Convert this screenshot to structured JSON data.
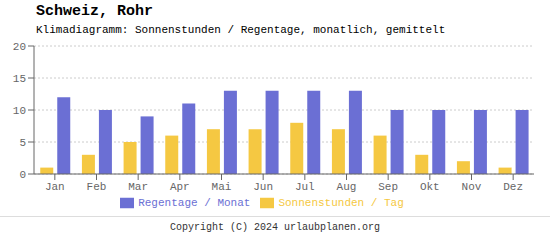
{
  "chart_data": {
    "type": "bar",
    "title": "Schweiz, Rohr",
    "subtitle": "Klimadiagramm: Sonnenstunden / Regentage, monatlich, gemittelt",
    "categories": [
      "Jan",
      "Feb",
      "Mar",
      "Apr",
      "Mai",
      "Jun",
      "Jul",
      "Aug",
      "Sep",
      "Okt",
      "Nov",
      "Dez"
    ],
    "series": [
      {
        "name": "Sonnenstunden / Tag",
        "color": "#F5C842",
        "values": [
          1,
          3,
          5,
          6,
          7,
          7,
          8,
          7,
          6,
          3,
          2,
          1
        ]
      },
      {
        "name": "Regentage / Monat",
        "color": "#6B6FD4",
        "values": [
          12,
          10,
          9,
          11,
          13,
          13,
          13,
          13,
          10,
          10,
          10,
          10
        ]
      }
    ],
    "ylim": [
      0,
      20
    ],
    "yticks": [
      0,
      5,
      10,
      15,
      20
    ],
    "grid": true,
    "legend": "bottom",
    "annotations": [
      "Copyright (C) 2024 urlaubplanen.org"
    ]
  }
}
